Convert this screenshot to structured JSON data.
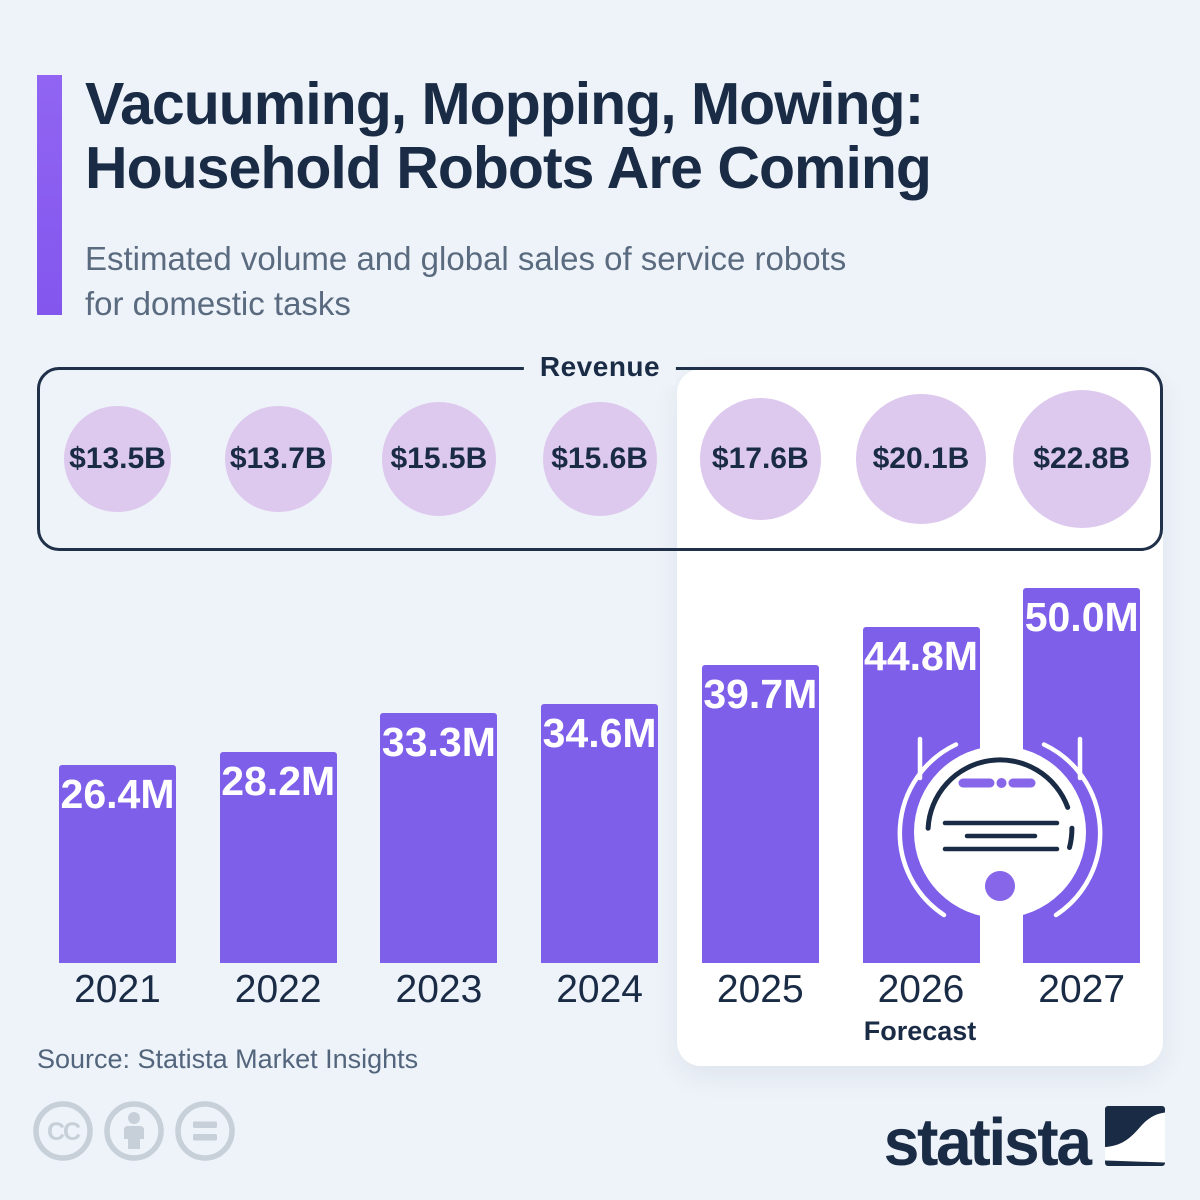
{
  "header": {
    "title_line1": "Vacuuming, Mopping, Mowing:",
    "title_line2": "Household Robots Are Coming",
    "subtitle_line1": "Estimated volume and global sales of service robots",
    "subtitle_line2": "for domestic tasks"
  },
  "chart_data": {
    "type": "bar",
    "title": "Estimated volume and global sales of service robots for domestic tasks",
    "categories": [
      "2021",
      "2022",
      "2023",
      "2024",
      "2025",
      "2026",
      "2027"
    ],
    "series": [
      {
        "name": "Volume of service robots (millions of units)",
        "values": [
          26.4,
          28.2,
          33.3,
          34.6,
          39.7,
          44.8,
          50.0
        ],
        "labels": [
          "26.4M",
          "28.2M",
          "33.3M",
          "34.6M",
          "39.7M",
          "44.8M",
          "50.0M"
        ]
      },
      {
        "name": "Revenue (billion USD)",
        "values": [
          13.5,
          13.7,
          15.5,
          15.6,
          17.6,
          20.1,
          22.8
        ],
        "labels": [
          "$13.5B",
          "$13.7B",
          "$15.5B",
          "$15.6B",
          "$17.6B",
          "$20.1B",
          "$22.8B"
        ]
      }
    ],
    "revenue_label": "Revenue",
    "forecast_label": "Forecast",
    "forecast_years": [
      "2025",
      "2026",
      "2027"
    ],
    "layout_hints": {
      "grid": false,
      "bar_value_labels": "inside-top, white",
      "revenue_bubbles": "area-proportional circles in bordered strip above bars",
      "forecast_highlight": "white rounded panel behind 2025-2027"
    }
  },
  "footer": {
    "source": "Source: Statista Market Insights",
    "logo_text": "statista",
    "cc_icons": [
      "cc-icon",
      "attribution-person-icon",
      "no-derivatives-equals-icon"
    ]
  },
  "colors": {
    "background": "#EEF3F9",
    "bar_purple": "#7E5FE9",
    "accent_purple": "#8A5EF2",
    "bubble_lavender": "#DEC9EE",
    "navy": "#1A2B45",
    "subtitle_gray": "#5A6B80",
    "source_gray": "#52657C",
    "cc_gray": "#C7CFD9",
    "panel_white": "#FFFFFF",
    "robot_detail_purple": "#8766EA"
  }
}
